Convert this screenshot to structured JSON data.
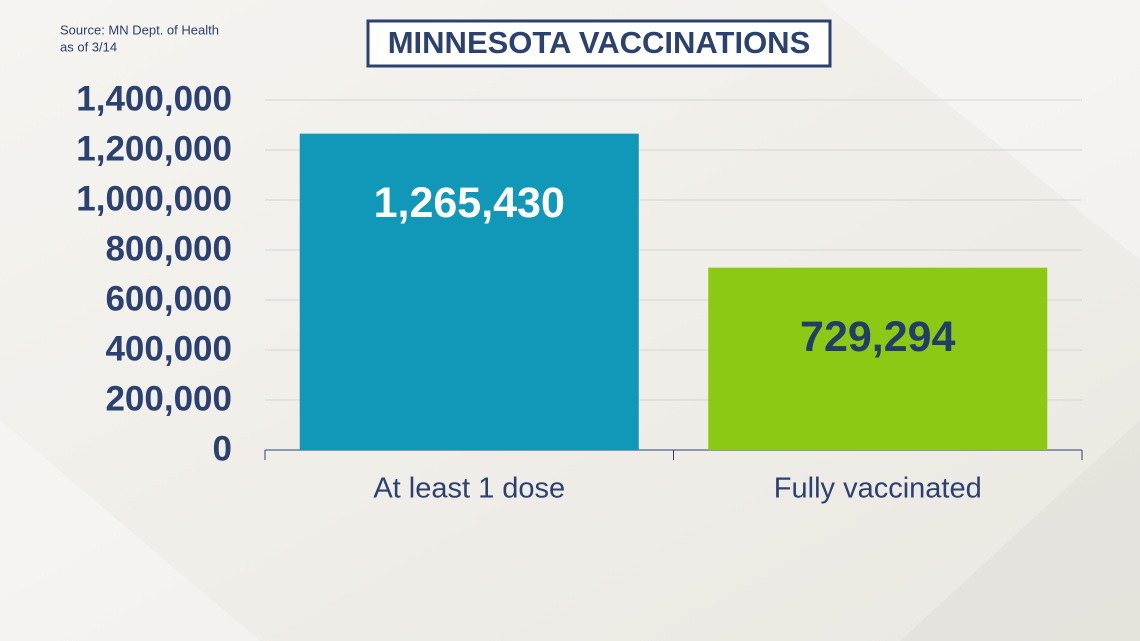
{
  "chart_data": {
    "type": "bar",
    "title": "MINNESOTA VACCINATIONS",
    "source": [
      "Source: MN Dept. of Health",
      "as of 3/14"
    ],
    "categories": [
      "At least 1 dose",
      "Fully vaccinated"
    ],
    "values": [
      1265430,
      729294
    ],
    "value_labels": [
      "1,265,430",
      "729,294"
    ],
    "colors": [
      "#1198b8",
      "#8cc914"
    ],
    "value_label_colors": [
      "#ffffff",
      "#233d6b"
    ],
    "ylim": [
      0,
      1400000
    ],
    "yticks": [
      0,
      {
        "value": 200000,
        "label": "200,000"
      },
      {
        "value": 400000,
        "label": "400,000"
      },
      {
        "value": 600000,
        "label": "600,000"
      },
      {
        "value": 800000,
        "label": "800,000"
      },
      {
        "value": 1000000,
        "label": "1,000,000"
      },
      {
        "value": 1200000,
        "label": "1,200,000"
      },
      {
        "value": 1400000,
        "label": "1,400,000"
      }
    ],
    "grid": true
  }
}
